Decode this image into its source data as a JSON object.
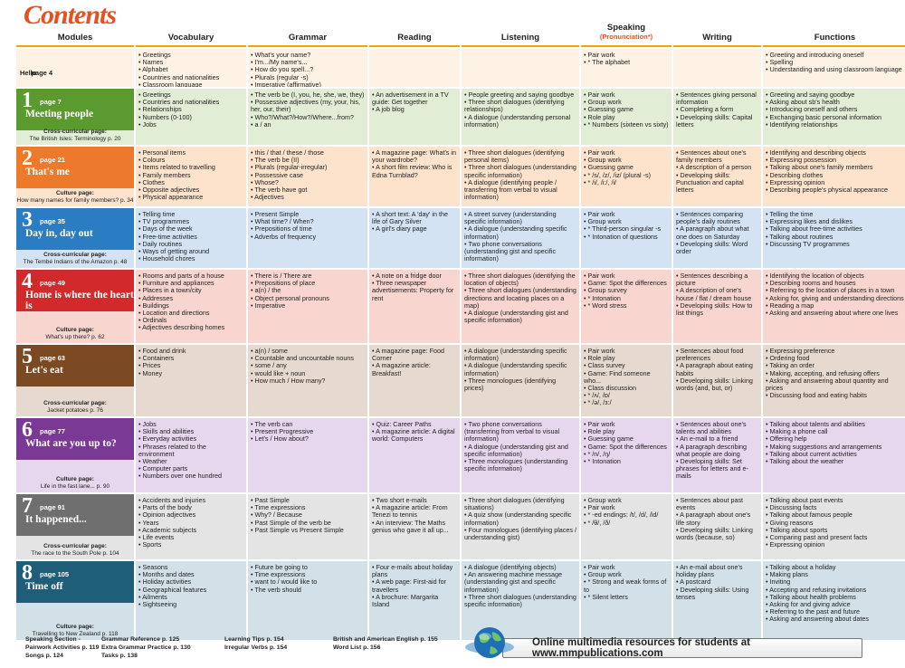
{
  "title": "Contents",
  "headers": [
    "Modules",
    "Vocabulary",
    "Grammar",
    "Reading",
    "Listening",
    "Speaking",
    "Writing",
    "Functions"
  ],
  "speaking_sub": "(Pronunciation*)",
  "hello": {
    "title": "Hello",
    "page": "page 4",
    "vocab": [
      "Greetings",
      "Names",
      "Alphabet",
      "Countries and nationalities",
      "Classroom language"
    ],
    "grammar": [
      "What's your name?",
      "I'm.../My name's...",
      "How do you spell...?",
      "Plurals (regular -s)",
      "Imperative (affirmative)"
    ],
    "speaking": [
      "Pair work",
      "* The alphabet"
    ],
    "functions": [
      "Greeting and introducing oneself",
      "Spelling",
      "Understanding and using classroom language"
    ]
  },
  "modules": [
    {
      "num": "1",
      "page": "page 7",
      "title": "Meeting people",
      "color": "#5a9a2f",
      "bg": "#e1edd4",
      "culture_label": "Cross-curricular page:",
      "culture_text": "The British Isles: Terminology  p. 20",
      "vocab": [
        "Greetings",
        "Countries and nationalities",
        "Relationships",
        "Numbers (0-100)",
        "Jobs"
      ],
      "grammar": [
        "The verb be (I, you, he, she, we, they)",
        "Possessive adjectives (my, your, his, her, our, their)",
        "Who?/What?/How?/Where...from?",
        "a / an"
      ],
      "reading": [
        "An advertisement in a TV guide: Get together",
        "A job blog"
      ],
      "listening": [
        "People greeting and saying goodbye",
        "Three short dialogues (identifying relationships)",
        "A dialogue (understanding personal information)"
      ],
      "speaking": [
        "Pair work",
        "Group work",
        "Guessing game",
        "Role play",
        "* Numbers (sixteen vs sixty)"
      ],
      "writing": [
        "Sentences giving personal information",
        "Completing a form",
        "Developing skills: Capital letters"
      ],
      "functions": [
        "Greeting and saying goodbye",
        "Asking about sb's health",
        "Introducing oneself and others",
        "Exchanging basic personal information",
        "Identifying relationships"
      ]
    },
    {
      "num": "2",
      "page": "page 21",
      "title": "That's me",
      "color": "#ec7a2a",
      "bg": "#fde2cc",
      "culture_label": "Culture page:",
      "culture_text": "How many names for family members?  p. 34",
      "vocab": [
        "Personal items",
        "Colours",
        "Items related to travelling",
        "Family members",
        "Clothes",
        "Opposite adjectives",
        "Physical appearance"
      ],
      "grammar": [
        "this / that / these / those",
        "The verb be (II)",
        "Plurals (regular-irregular)",
        "Possessive case",
        "Whose?",
        "The verb have got",
        "Adjectives"
      ],
      "reading": [
        "A magazine page: What's in your wardrobe?",
        "A short film review: Who is Edna Turnblad?"
      ],
      "listening": [
        "Three short dialogues (identifying personal items)",
        "Three short dialogues (understanding specific information)",
        "A dialogue (identifying people / transferring from verbal to visual information)"
      ],
      "speaking": [
        "Pair work",
        "Group work",
        "Guessing game",
        "* /s/, /z/, /iz/ (plural -s)",
        "* /i/, /i:/, /i/"
      ],
      "writing": [
        "Sentences about one's family members",
        "A description of a person",
        "Developing skills: Punctuation and capital letters"
      ],
      "functions": [
        "Identifying and describing objects",
        "Expressing possession",
        "Talking about one's family members",
        "Describing clothes",
        "Expressing opinion",
        "Describing people's physical appearance"
      ]
    },
    {
      "num": "3",
      "page": "page 35",
      "title": "Day in, day out",
      "color": "#2a7dc2",
      "bg": "#d3e3f3",
      "culture_label": "Cross-curricular page:",
      "culture_text": "The Tembé Indians of the Amazon  p. 48",
      "vocab": [
        "Telling time",
        "TV programmes",
        "Days of the week",
        "Free-time activities",
        "Daily routines",
        "Ways of getting around",
        "Household chores"
      ],
      "grammar": [
        "Present Simple",
        "What time? / When?",
        "Prepositions of time",
        "Adverbs of frequency"
      ],
      "reading": [
        "A short text: A 'day' in the life of Gary Silver",
        "A girl's diary page"
      ],
      "listening": [
        "A street survey (understanding specific information)",
        "A dialogue (understanding specific information)",
        "Two phone conversations (understanding gist and specific information)"
      ],
      "speaking": [
        "Pair work",
        "Group work",
        "* Third-person singular -s",
        "* Intonation of questions"
      ],
      "writing": [
        "Sentences comparing people's daily routines",
        "A paragraph about what one does on Saturday",
        "Developing skills: Word order"
      ],
      "functions": [
        "Telling the time",
        "Expressing likes and dislikes",
        "Talking about free-time activities",
        "Talking about routines",
        "Discussing TV programmes"
      ]
    },
    {
      "num": "4",
      "page": "page 49",
      "title": "Home is where the heart is",
      "color": "#d22a2a",
      "bg": "#f8d5cf",
      "culture_label": "Culture page:",
      "culture_text": "What's up there?  p. 62",
      "vocab": [
        "Rooms and parts of a house",
        "Furniture and appliances",
        "Places in a town/city",
        "Addresses",
        "Buildings",
        "Location and directions",
        "Ordinals",
        "Adjectives describing homes"
      ],
      "grammar": [
        "There is / There are",
        "Prepositions of place",
        "a(n) / the",
        "Object personal pronouns",
        "Imperative"
      ],
      "reading": [
        "A note on a fridge door",
        "Three newspaper advertisements: Property for rent"
      ],
      "listening": [
        "Three short dialogues (identifying the location of objects)",
        "Three short dialogues (understanding directions and locating places on a map)",
        "A dialogue (understanding gist and specific information)"
      ],
      "speaking": [
        "Pair work",
        "Game: Spot the differences",
        "Group survey",
        "* Intonation",
        "* Word stress"
      ],
      "writing": [
        "Sentences describing a picture",
        "A description of one's house / flat / dream house",
        "Developing skills: How to list things"
      ],
      "functions": [
        "Identifying the location of objects",
        "Describing rooms and houses",
        "Referring to the location of places in a town",
        "Asking for, giving and understanding directions",
        "Reading a map",
        "Asking and answering about where one lives"
      ]
    },
    {
      "num": "5",
      "page": "page 63",
      "title": "Let's eat",
      "color": "#7c4a22",
      "bg": "#e6dad0",
      "culture_label": "Cross-curricular page:",
      "culture_text": "Jacket potatoes  p. 76",
      "vocab": [
        "Food and drink",
        "Containers",
        "Prices",
        "Money"
      ],
      "grammar": [
        "a(n) / some",
        "Countable and uncountable nouns",
        "some / any",
        "would like + noun",
        "How much / How many?"
      ],
      "reading": [
        "A magazine page: Food Corner",
        "A magazine article: Breakfast!"
      ],
      "listening": [
        "A dialogue (understanding specific information)",
        "A dialogue (understanding specific information)",
        "Three monologues (identifying prices)"
      ],
      "speaking": [
        "Pair work",
        "Role play",
        "Class survey",
        "Game: Find someone who...",
        "Class discussion",
        "* /ʌ/, /ɒ/",
        "* /ə/, /ɜ:/"
      ],
      "writing": [
        "Sentences about food preferences",
        "A paragraph about eating habits",
        "Developing skills: Linking words (and, but, or)"
      ],
      "functions": [
        "Expressing preference",
        "Ordering food",
        "Taking an order",
        "Making, accepting, and refusing offers",
        "Asking and answering about quantity and prices",
        "Discussing food and eating habits"
      ]
    },
    {
      "num": "6",
      "page": "page 77",
      "title": "What are you up to?",
      "color": "#7b3996",
      "bg": "#e6d7ee",
      "culture_label": "Culture page:",
      "culture_text": "Life in the fast lane...  p. 90",
      "vocab": [
        "Jobs",
        "Skills and abilities",
        "Everyday activities",
        "Phrases related to the environment",
        "Weather",
        "Computer parts",
        "Numbers over one hundred"
      ],
      "grammar": [
        "The verb can",
        "Present Progressive",
        "Let's / How about?"
      ],
      "reading": [
        "Quiz: Career Paths",
        "A magazine article: A digital world: Computers"
      ],
      "listening": [
        "Two phone conversations (transferring from verbal to visual information)",
        "A dialogue (understanding gist and specific information)",
        "Three monologues (understanding specific information)"
      ],
      "speaking": [
        "Pair work",
        "Role play",
        "Guessing game",
        "Game: Spot the differences",
        "* /n/, /ŋ/",
        "* Intonation"
      ],
      "writing": [
        "Sentences about one's talents and abilities",
        "An e-mail to a friend",
        "A paragraph describing what people are doing",
        "Developing skills: Set phrases for letters and e-mails"
      ],
      "functions": [
        "Talking about talents and abilities",
        "Making a phone call",
        "Offering help",
        "Making suggestions and arrangements",
        "Talking about current activities",
        "Talking about the weather"
      ]
    },
    {
      "num": "7",
      "page": "page 91",
      "title": "It happened...",
      "color": "#6f6f6f",
      "bg": "#e4e4e4",
      "culture_label": "Cross-curricular page:",
      "culture_text": "The race to the South Pole  p. 104",
      "vocab": [
        "Accidents and injuries",
        "Parts of the body",
        "Opinion adjectives",
        "Years",
        "Academic subjects",
        "Life events",
        "Sports"
      ],
      "grammar": [
        "Past Simple",
        "Time expressions",
        "Why? / Because",
        "Past Simple of the verb be",
        "Past Simple vs Present Simple"
      ],
      "reading": [
        "Two short e-mails",
        "A magazine article: From Tenezi to tennis",
        "An interview: The Maths genius who gave it all up..."
      ],
      "listening": [
        "Three short dialogues (identifying situations)",
        "A quiz show (understanding specific information)",
        "Four monologues (identifying places / understanding gist)"
      ],
      "speaking": [
        "Group work",
        "Pair work",
        "* -ed endings: /t/, /d/, /id/",
        "* /θ/, /ð/"
      ],
      "writing": [
        "Sentences about past events",
        "A paragraph about one's life story",
        "Developing skills: Linking words (because, so)"
      ],
      "functions": [
        "Talking about past events",
        "Discussing facts",
        "Talking about famous people",
        "Giving reasons",
        "Talking about sports",
        "Comparing past and present facts",
        "Expressing opinion"
      ]
    },
    {
      "num": "8",
      "page": "page 105",
      "title": "Time off",
      "color": "#1f5e78",
      "bg": "#d2e0e7",
      "culture_label": "Culture page:",
      "culture_text": "Travelling to New Zealand  p. 118",
      "vocab": [
        "Seasons",
        "Months and dates",
        "Holiday activities",
        "Geographical features",
        "Ailments",
        "Sightseeing"
      ],
      "grammar": [
        "Future be going to",
        "Time expressions",
        "want to / would like to",
        "The verb should"
      ],
      "reading": [
        "Four e-mails about holiday plans",
        "A web page: First-aid for travellers",
        "A brochure: Margarita Island"
      ],
      "listening": [
        "A dialogue (identifying objects)",
        "An answering machine message (understanding gist and specific information)",
        "Three short dialogues (understanding specific information)"
      ],
      "speaking": [
        "Pair work",
        "Group work",
        "* Strong and weak forms of to",
        "* Silent letters"
      ],
      "writing": [
        "An e-mail about one's holiday plans",
        "A postcard",
        "Developing skills: Using tenses"
      ],
      "functions": [
        "Talking about a holiday",
        "Making plans",
        "Inviting",
        "Accepting and refusing invitations",
        "Talking about health problems",
        "Asking for and giving advice",
        "Referring to the past and future",
        "Asking and answering about dates"
      ]
    }
  ],
  "footer": {
    "col1": [
      "Speaking Section -",
      "Pairwork Activities  p. 119",
      "Songs  p. 124"
    ],
    "col2": [
      "Grammar Reference  p. 125",
      "Extra Grammar Practice  p. 130",
      "Tasks  p. 138"
    ],
    "col3": [
      "Learning Tips  p. 154",
      "Irregular Verbs  p. 154"
    ],
    "col4": [
      "British and American English  p. 155",
      "Word List  p. 156"
    ],
    "banner": "Online multimedia resources for students at www.mmpublications.com"
  }
}
